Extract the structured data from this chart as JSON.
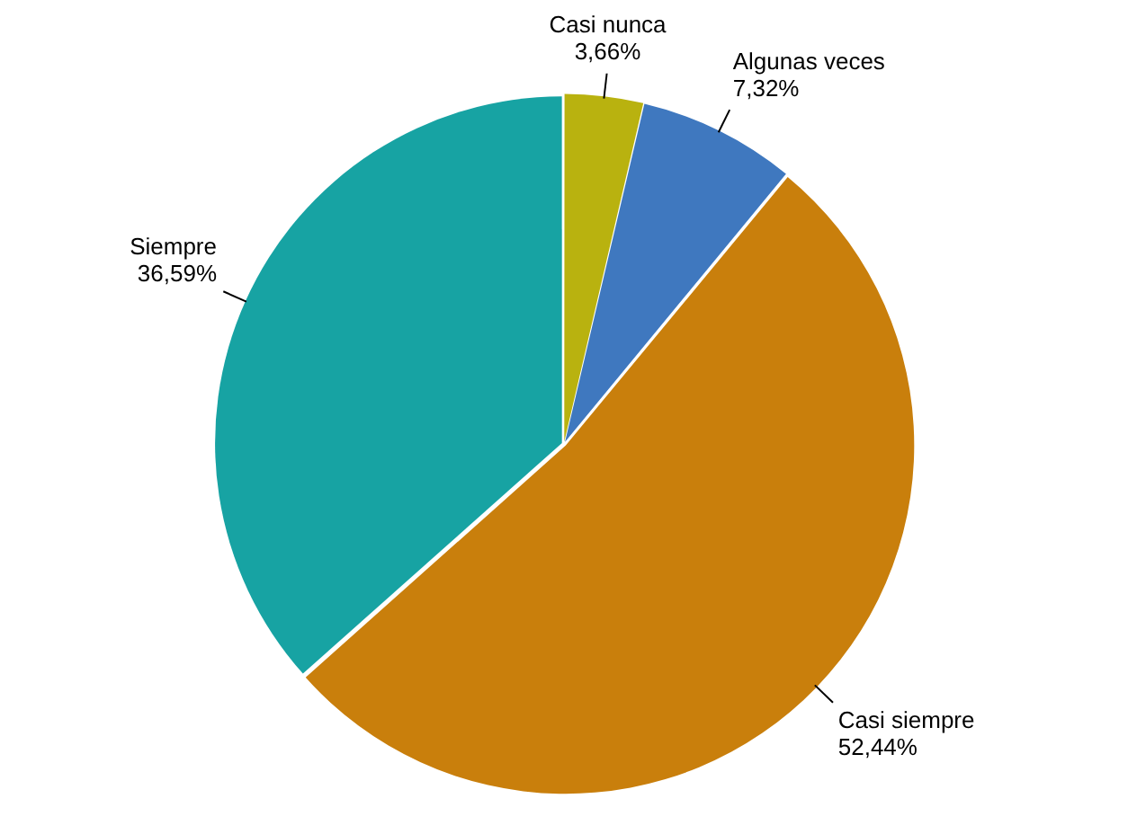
{
  "chart_data": {
    "type": "pie",
    "categories": [
      "Casi nunca",
      "Algunas veces",
      "Casi siempre",
      "Siempre"
    ],
    "values": [
      3.66,
      7.32,
      52.44,
      36.59
    ],
    "value_labels": [
      "3,66%",
      "7,32%",
      "52,44%",
      "36,59%"
    ],
    "colors": [
      "#b9b20f",
      "#3f78bf",
      "#c97f0c",
      "#17a3a3"
    ]
  }
}
